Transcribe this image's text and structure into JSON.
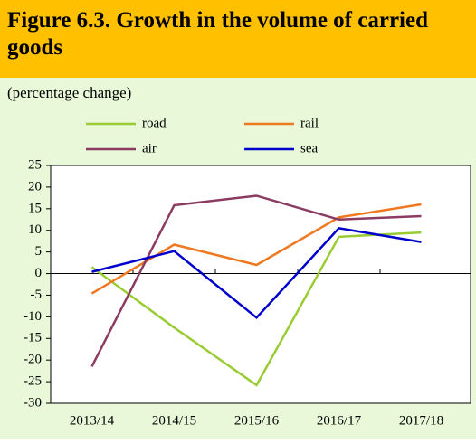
{
  "chart_data": {
    "type": "line",
    "title": "Figure 6.3. Growth in the volume of carried goods",
    "subtitle": "(percentage change)",
    "categories": [
      "2013/14",
      "2014/15",
      "2015/16",
      "2016/17",
      "2017/18"
    ],
    "series": [
      {
        "name": "road",
        "color": "#99cc33",
        "values": [
          1.5,
          -12.5,
          -25.8,
          8.5,
          9.5
        ]
      },
      {
        "name": "rail",
        "color": "#f07820",
        "values": [
          -4.6,
          6.7,
          2.0,
          13.0,
          16.0
        ]
      },
      {
        "name": "air",
        "color": "#8b3a62",
        "values": [
          -21.5,
          15.8,
          18.0,
          12.5,
          13.3
        ]
      },
      {
        "name": "sea",
        "color": "#0000cc",
        "values": [
          0.4,
          5.2,
          -10.2,
          10.5,
          7.3
        ]
      }
    ],
    "ylim": [
      -30,
      25
    ],
    "yticks": [
      -30,
      -25,
      -20,
      -15,
      -10,
      -5,
      0,
      5,
      10,
      15,
      20,
      25
    ],
    "grid": false
  }
}
